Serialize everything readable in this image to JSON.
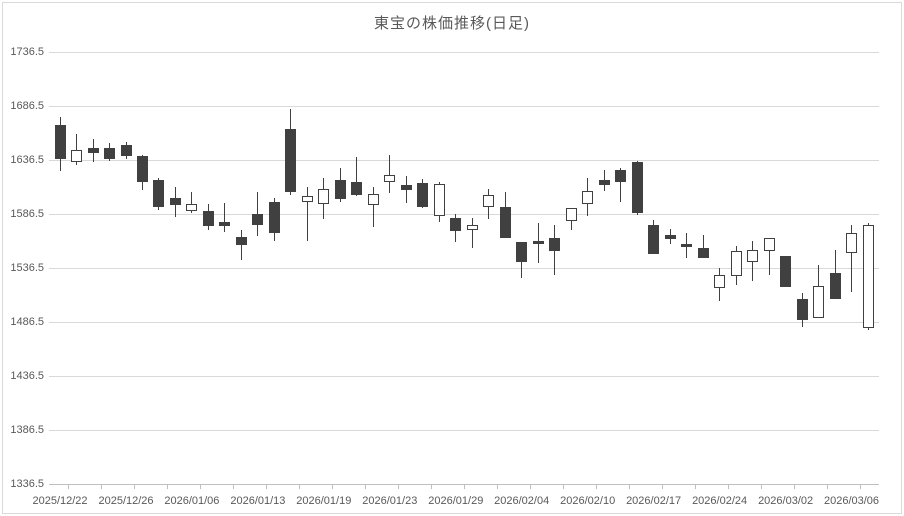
{
  "title": "東宝の株価推移(日足)",
  "colors": {
    "background": "#ffffff",
    "frame_border": "#d9d9d9",
    "gridline": "#d9d9d9",
    "axis_line": "#bfbfbf",
    "label_text": "#595959",
    "candle_up_fill": "#ffffff",
    "candle_down_fill": "#404040",
    "candle_outline": "#404040"
  },
  "y_axis": {
    "tick_labels": [
      "1736.5",
      "1686.5",
      "1636.5",
      "1586.5",
      "1536.5",
      "1486.5",
      "1436.5",
      "1386.5",
      "1336.5"
    ],
    "min": 1336.5,
    "max": 1736.5,
    "step": 50
  },
  "x_axis": {
    "labels": [
      "2025/12/22",
      "2025/12/26",
      "2026/01/06",
      "2026/01/13",
      "2026/01/19",
      "2026/01/23",
      "2026/01/29",
      "2026/02/04",
      "2026/02/10",
      "2026/02/17",
      "2026/02/24",
      "2026/03/02",
      "2026/03/06"
    ],
    "label_every_n_candles": 4
  },
  "chart_data": {
    "type": "candlestick",
    "title": "東宝の株価推移(日足)",
    "ylim": [
      1336.5,
      1736.5
    ],
    "grid": true,
    "legend": false,
    "candles": [
      {
        "date": "2025/12/22",
        "open": 1669,
        "high": 1676,
        "low": 1626,
        "close": 1637
      },
      {
        "date": "2025/12/23",
        "open": 1635,
        "high": 1661,
        "low": 1632,
        "close": 1646
      },
      {
        "date": "2025/12/24",
        "open": 1648,
        "high": 1656,
        "low": 1635,
        "close": 1643
      },
      {
        "date": "2025/12/25",
        "open": 1648,
        "high": 1652,
        "low": 1636,
        "close": 1637
      },
      {
        "date": "2025/12/26",
        "open": 1650,
        "high": 1653,
        "low": 1637,
        "close": 1640
      },
      {
        "date": "2025/12/29",
        "open": 1640,
        "high": 1641,
        "low": 1609,
        "close": 1616
      },
      {
        "date": "2025/12/30",
        "open": 1618,
        "high": 1620,
        "low": 1590,
        "close": 1593
      },
      {
        "date": "2026/01/05",
        "open": 1601,
        "high": 1612,
        "low": 1584,
        "close": 1595
      },
      {
        "date": "2026/01/06",
        "open": 1589,
        "high": 1607,
        "low": 1587,
        "close": 1596
      },
      {
        "date": "2026/01/07",
        "open": 1589,
        "high": 1596,
        "low": 1572,
        "close": 1575
      },
      {
        "date": "2026/01/08",
        "open": 1579,
        "high": 1597,
        "low": 1570,
        "close": 1575
      },
      {
        "date": "2026/01/09",
        "open": 1565,
        "high": 1572,
        "low": 1544,
        "close": 1558
      },
      {
        "date": "2026/01/13",
        "open": 1587,
        "high": 1607,
        "low": 1566,
        "close": 1576
      },
      {
        "date": "2026/01/14",
        "open": 1598,
        "high": 1601,
        "low": 1561,
        "close": 1569
      },
      {
        "date": "2026/01/15",
        "open": 1665,
        "high": 1684,
        "low": 1604,
        "close": 1607
      },
      {
        "date": "2026/01/16",
        "open": 1598,
        "high": 1612,
        "low": 1562,
        "close": 1603
      },
      {
        "date": "2026/01/19",
        "open": 1596,
        "high": 1620,
        "low": 1582,
        "close": 1610
      },
      {
        "date": "2026/01/20",
        "open": 1618,
        "high": 1629,
        "low": 1598,
        "close": 1600
      },
      {
        "date": "2026/01/21",
        "open": 1616,
        "high": 1639,
        "low": 1603,
        "close": 1604
      },
      {
        "date": "2026/01/22",
        "open": 1595,
        "high": 1612,
        "low": 1575,
        "close": 1605
      },
      {
        "date": "2026/01/23",
        "open": 1616,
        "high": 1641,
        "low": 1606,
        "close": 1623
      },
      {
        "date": "2026/01/26",
        "open": 1613,
        "high": 1622,
        "low": 1597,
        "close": 1609
      },
      {
        "date": "2026/01/27",
        "open": 1615,
        "high": 1619,
        "low": 1592,
        "close": 1593
      },
      {
        "date": "2026/01/28",
        "open": 1585,
        "high": 1616,
        "low": 1579,
        "close": 1614
      },
      {
        "date": "2026/01/29",
        "open": 1583,
        "high": 1587,
        "low": 1561,
        "close": 1571
      },
      {
        "date": "2026/01/30",
        "open": 1572,
        "high": 1583,
        "low": 1555,
        "close": 1576
      },
      {
        "date": "2026/02/02",
        "open": 1593,
        "high": 1610,
        "low": 1582,
        "close": 1604
      },
      {
        "date": "2026/02/03",
        "open": 1593,
        "high": 1607,
        "low": 1564,
        "close": 1564
      },
      {
        "date": "2026/02/04",
        "open": 1561,
        "high": 1561,
        "low": 1527,
        "close": 1542
      },
      {
        "date": "2026/02/05",
        "open": 1562,
        "high": 1578,
        "low": 1541,
        "close": 1559
      },
      {
        "date": "2026/02/06",
        "open": 1564,
        "high": 1576,
        "low": 1530,
        "close": 1552
      },
      {
        "date": "2026/02/09",
        "open": 1580,
        "high": 1592,
        "low": 1572,
        "close": 1592
      },
      {
        "date": "2026/02/10",
        "open": 1596,
        "high": 1620,
        "low": 1585,
        "close": 1608
      },
      {
        "date": "2026/02/12",
        "open": 1618,
        "high": 1627,
        "low": 1608,
        "close": 1613
      },
      {
        "date": "2026/02/13",
        "open": 1627,
        "high": 1629,
        "low": 1598,
        "close": 1616
      },
      {
        "date": "2026/02/16",
        "open": 1635,
        "high": 1636,
        "low": 1586,
        "close": 1587
      },
      {
        "date": "2026/02/17",
        "open": 1576,
        "high": 1581,
        "low": 1549,
        "close": 1549
      },
      {
        "date": "2026/02/18",
        "open": 1567,
        "high": 1573,
        "low": 1559,
        "close": 1563
      },
      {
        "date": "2026/02/19",
        "open": 1559,
        "high": 1569,
        "low": 1546,
        "close": 1556
      },
      {
        "date": "2026/02/20",
        "open": 1555,
        "high": 1567,
        "low": 1546,
        "close": 1546
      },
      {
        "date": "2026/02/24",
        "open": 1518,
        "high": 1537,
        "low": 1506,
        "close": 1530
      },
      {
        "date": "2026/02/25",
        "open": 1529,
        "high": 1557,
        "low": 1521,
        "close": 1552
      },
      {
        "date": "2026/02/26",
        "open": 1542,
        "high": 1562,
        "low": 1525,
        "close": 1553
      },
      {
        "date": "2026/02/27",
        "open": 1552,
        "high": 1564,
        "low": 1530,
        "close": 1564
      },
      {
        "date": "2026/03/02",
        "open": 1548,
        "high": 1548,
        "low": 1519,
        "close": 1519
      },
      {
        "date": "2026/03/03",
        "open": 1508,
        "high": 1513,
        "low": 1482,
        "close": 1488
      },
      {
        "date": "2026/03/04",
        "open": 1490,
        "high": 1539,
        "low": 1490,
        "close": 1520
      },
      {
        "date": "2026/03/05",
        "open": 1532,
        "high": 1553,
        "low": 1508,
        "close": 1508
      },
      {
        "date": "2026/03/06",
        "open": 1550,
        "high": 1576,
        "low": 1514,
        "close": 1569
      },
      {
        "date": "2026/03/09",
        "open": 1481,
        "high": 1578,
        "low": 1479,
        "close": 1576
      }
    ]
  }
}
